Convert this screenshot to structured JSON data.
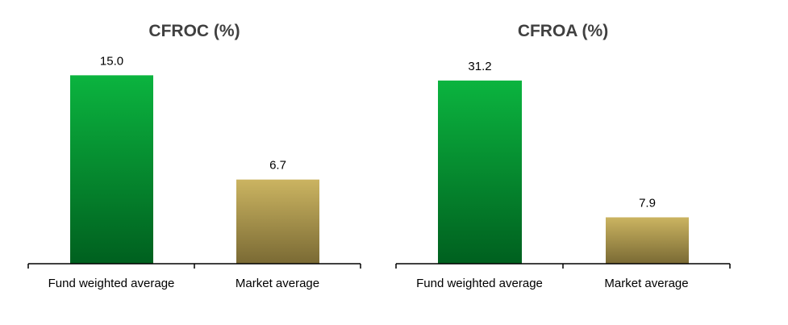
{
  "colors": {
    "fund_top": "#0bb43f",
    "fund_bottom": "#00601f",
    "market_top": "#cbb461",
    "market_bottom": "#7a6a34",
    "title_text": "#404040",
    "axis": "#000000"
  },
  "chart_data": [
    {
      "type": "bar",
      "title": "CFROC (%)",
      "xlabel": "",
      "ylabel": "",
      "categories": [
        "Fund weighted average",
        "Market average"
      ],
      "values": [
        15.0,
        6.7
      ],
      "value_labels": [
        "15.0",
        "6.7"
      ],
      "ylim": [
        0,
        16.5
      ],
      "grid": false,
      "legend": "none"
    },
    {
      "type": "bar",
      "title": "CFROA (%)",
      "xlabel": "",
      "ylabel": "",
      "categories": [
        "Fund weighted average",
        "Market average"
      ],
      "values": [
        31.2,
        7.9
      ],
      "value_labels": [
        "31.2",
        "7.9"
      ],
      "ylim": [
        0,
        35.3
      ],
      "grid": false,
      "legend": "none"
    }
  ]
}
